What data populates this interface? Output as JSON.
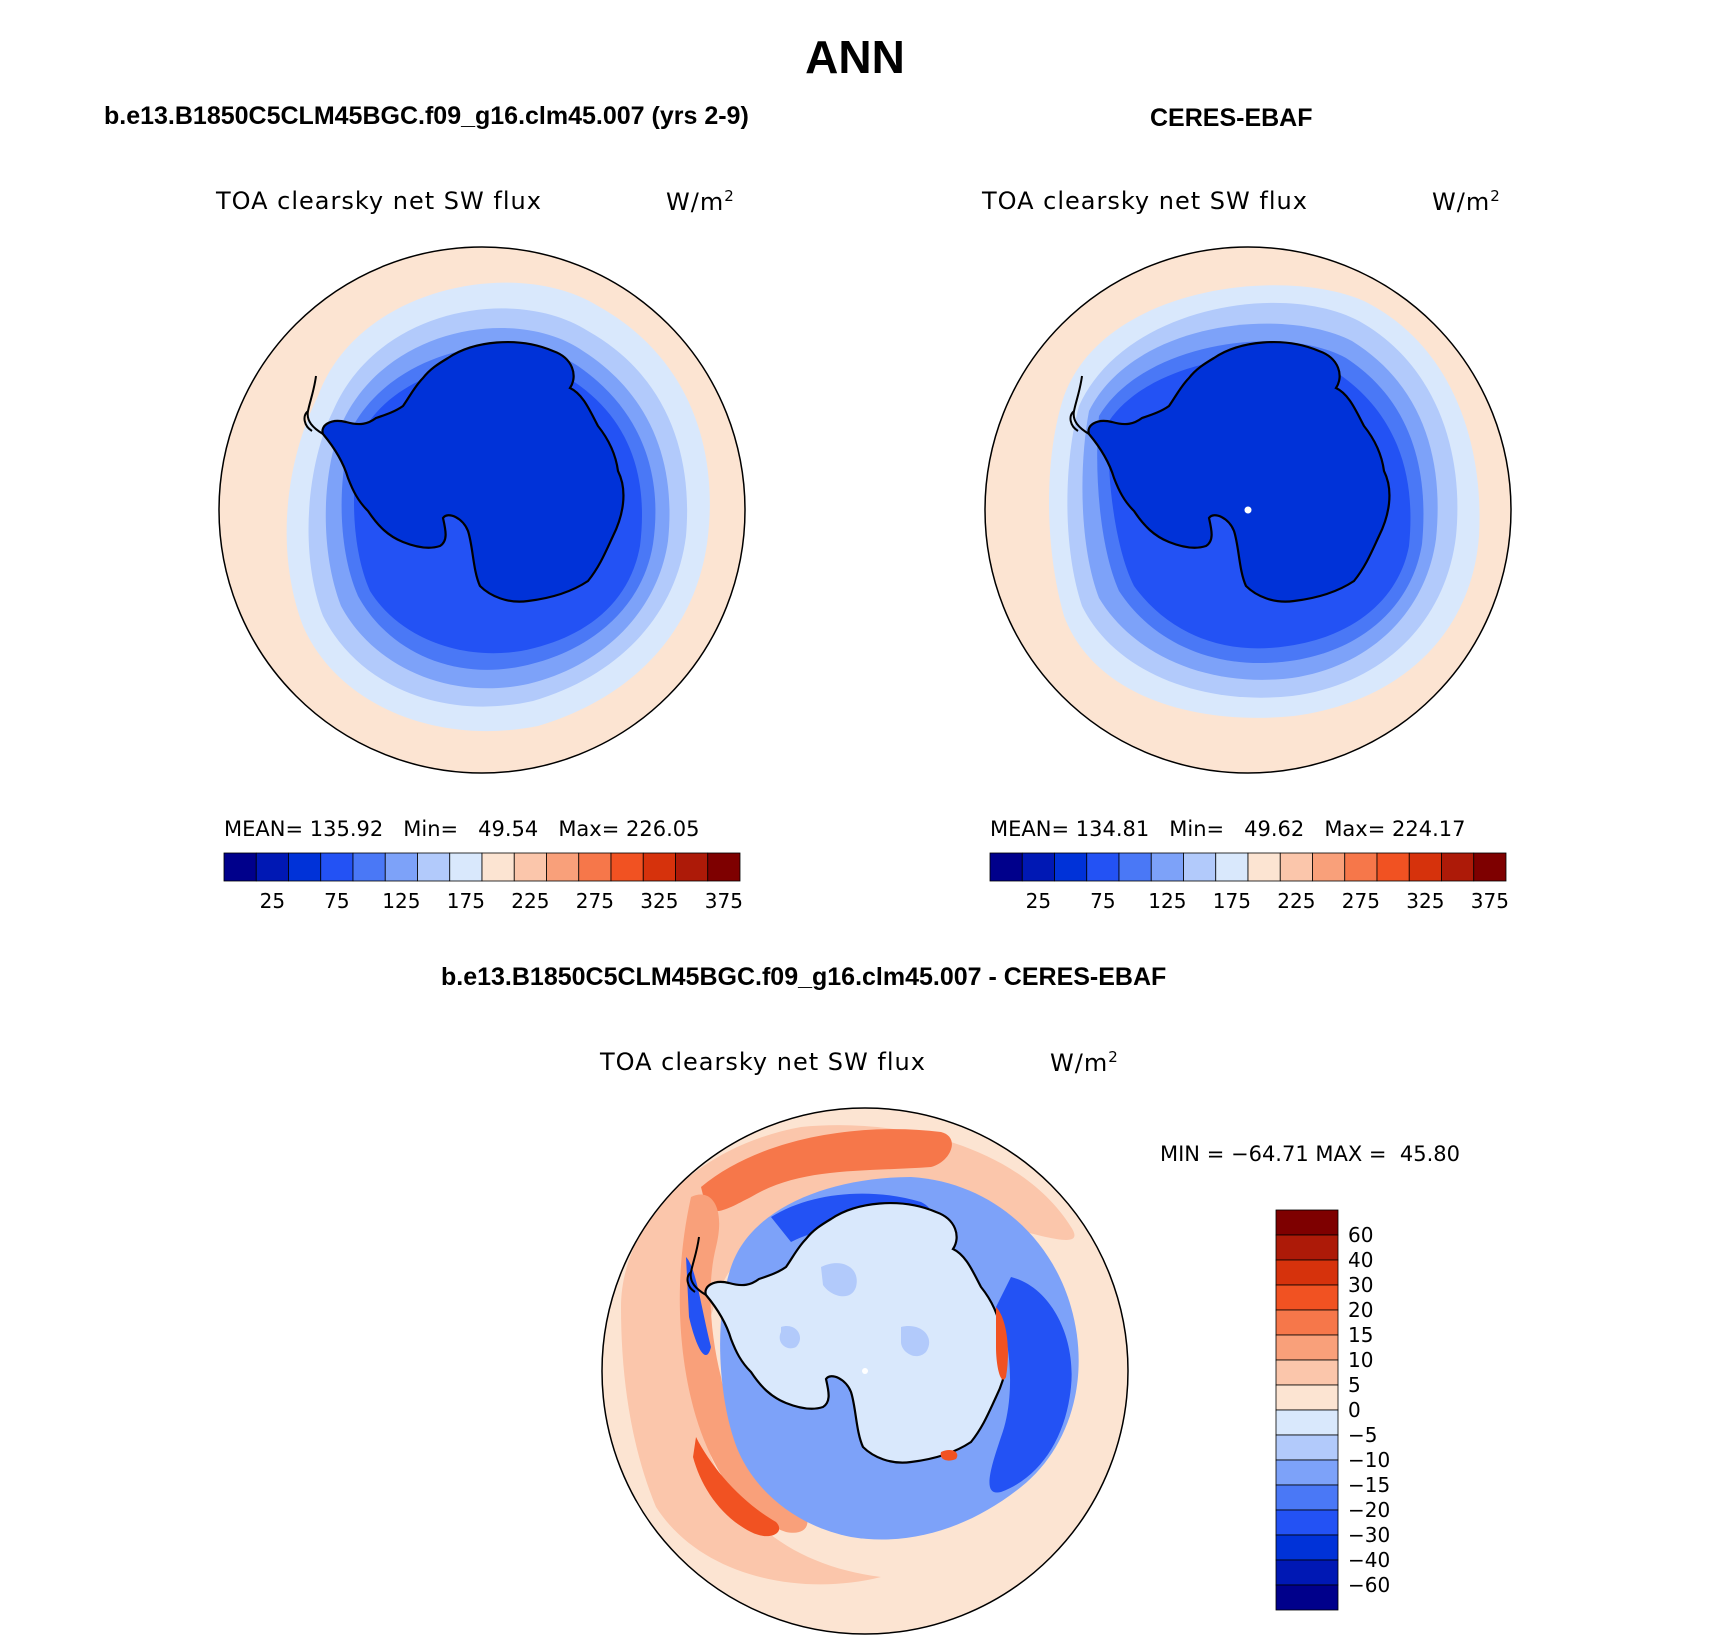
{
  "figure": {
    "season": "ANN"
  },
  "panels": [
    {
      "title": "b.e13.B1850C5CLM45BGC.f09_g16.clm45.007 (yrs 2-9)",
      "variable": "TOA clearsky net SW flux",
      "units": "W/m",
      "units_sup": "2",
      "mean_label": "MEAN=",
      "mean": "135.92",
      "min_label": "Min=",
      "min": "49.54",
      "max_label": "Max=",
      "max": "226.05",
      "colorbar_labels": [
        "25",
        "75",
        "125",
        "175",
        "225",
        "275",
        "325",
        "375"
      ]
    },
    {
      "title": "CERES-EBAF",
      "variable": "TOA clearsky net SW flux",
      "units": "W/m",
      "units_sup": "2",
      "mean_label": "MEAN=",
      "mean": "134.81",
      "min_label": "Min=",
      "min": "49.62",
      "max_label": "Max=",
      "max": "224.17",
      "colorbar_labels": [
        "25",
        "75",
        "125",
        "175",
        "225",
        "275",
        "325",
        "375"
      ]
    }
  ],
  "diff": {
    "title": "b.e13.B1850C5CLM45BGC.f09_g16.clm45.007 - CERES-EBAF",
    "variable": "TOA clearsky net SW flux",
    "units": "W/m",
    "units_sup": "2",
    "min_label": "MIN =",
    "min": "−64.71",
    "max_label": "MAX =",
    "max": "45.80",
    "colorbar_labels": [
      "60",
      "40",
      "30",
      "20",
      "15",
      "10",
      "5",
      "0",
      "−5",
      "−10",
      "−15",
      "−20",
      "−30",
      "−40",
      "−60"
    ]
  },
  "colors": {
    "abs_scale": [
      "#00008b",
      "#0018b4",
      "#0032d8",
      "#2352f4",
      "#4a78f6",
      "#7da2f9",
      "#b2cafb",
      "#d9e8fc",
      "#fce4d2",
      "#fbc6ab",
      "#f9a07a",
      "#f6774a",
      "#f15222",
      "#d6320c",
      "#ad1a08",
      "#7e0000"
    ],
    "diff_scale": [
      "#7e0000",
      "#ad1a08",
      "#d6320c",
      "#f15222",
      "#f6774a",
      "#f9a07a",
      "#fbc6ab",
      "#fce4d2",
      "#d9e8fc",
      "#b2cafb",
      "#7da2f9",
      "#4a78f6",
      "#2352f4",
      "#0032d8",
      "#0018b4",
      "#00008b"
    ]
  }
}
